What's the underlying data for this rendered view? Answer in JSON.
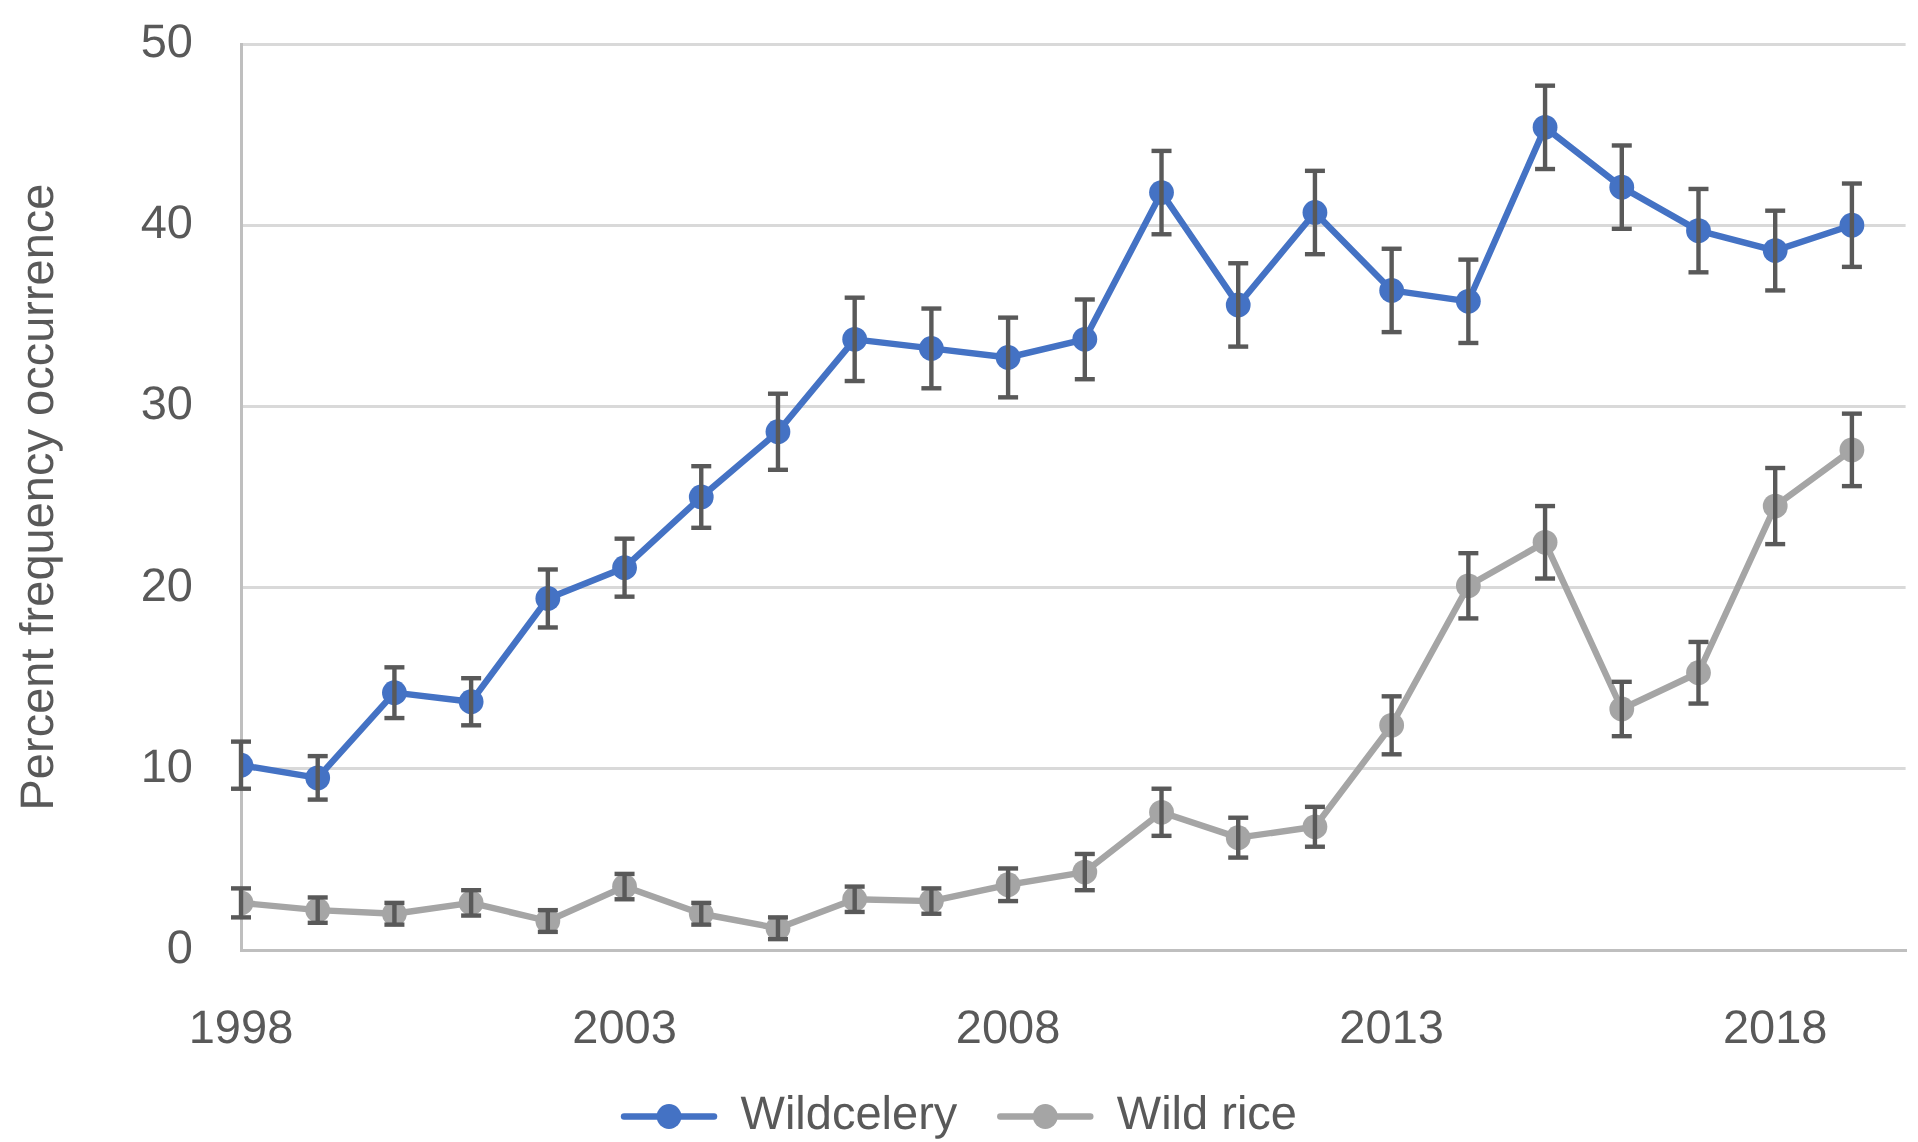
{
  "chart_data": {
    "type": "line",
    "ylabel": "Percent frequency occurrence",
    "x": [
      1998,
      1999,
      2000,
      2001,
      2002,
      2003,
      2004,
      2005,
      2006,
      2007,
      2008,
      2009,
      2010,
      2011,
      2012,
      2013,
      2014,
      2015,
      2016,
      2017,
      2018,
      2019
    ],
    "series": [
      {
        "name": "Wildcelery",
        "color": "#4472c4",
        "values": [
          10.2,
          9.5,
          14.2,
          13.7,
          19.4,
          21.1,
          25.0,
          28.6,
          33.7,
          33.2,
          32.7,
          33.7,
          41.8,
          35.6,
          40.7,
          36.4,
          35.8,
          45.4,
          42.1,
          39.7,
          38.6,
          40.0
        ],
        "errors": [
          1.3,
          1.2,
          1.4,
          1.3,
          1.6,
          1.6,
          1.7,
          2.1,
          2.3,
          2.2,
          2.2,
          2.2,
          2.3,
          2.3,
          2.3,
          2.3,
          2.3,
          2.3,
          2.3,
          2.3,
          2.2,
          2.3
        ]
      },
      {
        "name": "Wild rice",
        "color": "#a5a5a5",
        "values": [
          2.6,
          2.2,
          2.0,
          2.6,
          1.6,
          3.5,
          2.0,
          1.2,
          2.8,
          2.7,
          3.6,
          4.3,
          7.6,
          6.2,
          6.8,
          12.4,
          20.1,
          22.5,
          13.3,
          15.3,
          24.5,
          27.6
        ],
        "errors": [
          0.8,
          0.7,
          0.6,
          0.7,
          0.6,
          0.7,
          0.6,
          0.6,
          0.7,
          0.7,
          0.9,
          1.0,
          1.3,
          1.1,
          1.1,
          1.6,
          1.8,
          2.0,
          1.5,
          1.7,
          2.1,
          2.0
        ]
      }
    ],
    "xlim": [
      1998,
      2019.7
    ],
    "xticks": [
      1998,
      2003,
      2008,
      2013,
      2018
    ],
    "ylim": [
      0,
      50
    ],
    "yticks": [
      0,
      10,
      20,
      30,
      40,
      50
    ],
    "grid": "y",
    "legend": "bottom",
    "marker": "circle",
    "line_style": "solid"
  }
}
